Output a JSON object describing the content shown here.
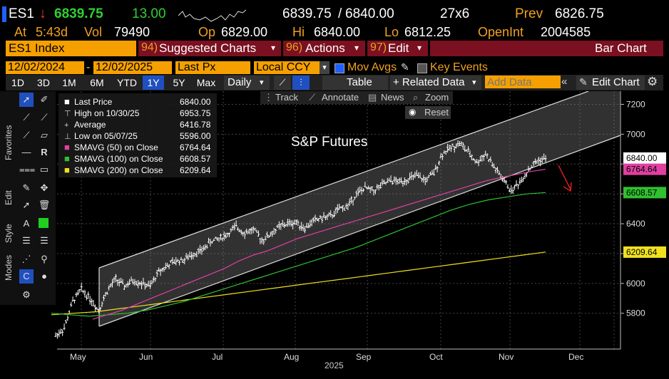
{
  "header": {
    "ticker": "ES1",
    "arrow": "↓",
    "last": "6839.75",
    "change": "13.00",
    "bid": "6839.75",
    "slash": "/",
    "ask": "6840.00",
    "size": "27x6",
    "prev_label": "Prev",
    "prev": "6826.75",
    "at_label": "At",
    "time": "5:43d",
    "vol_label": "Vol",
    "vol": "79490",
    "op_label": "Op",
    "op": "6829.00",
    "hi_label": "Hi",
    "hi": "6840.00",
    "lo_label": "Lo",
    "lo": "6812.25",
    "oi_label": "OpenInt",
    "oi": "2004585"
  },
  "menubar": {
    "security": "ES1 Index",
    "suggested_num": "94)",
    "suggested": "Suggested Charts",
    "actions_num": "96)",
    "actions": "Actions",
    "edit_num": "97)",
    "edit": "Edit",
    "chart_type": "Bar Chart"
  },
  "controls": {
    "start_date": "12/02/2024",
    "dash": "-",
    "end_date": "12/02/2025",
    "field": "Last Px",
    "ccy": "Local CCY",
    "mov_avgs": "Mov Avgs",
    "key_events": "Key Events"
  },
  "periods": [
    "1D",
    "3D",
    "1M",
    "6M",
    "YTD",
    "1Y",
    "5Y",
    "Max"
  ],
  "selected_period": "1Y",
  "toolbar": {
    "interval": "Daily",
    "table": "Table",
    "related": "+ Related Data",
    "add_data_placeholder": "Add Data",
    "edit_chart": "Edit Chart"
  },
  "chart_tools": {
    "track": "Track",
    "annotate": "Annotate",
    "news": "News",
    "zoom": "Zoom",
    "reset": "Reset"
  },
  "side_tabs": [
    "Favorites",
    "Edit",
    "Style",
    "Modes"
  ],
  "legend": [
    {
      "label": "Last Price",
      "value": "6840.00",
      "color": "#ffffff"
    },
    {
      "label": "High on 10/30/25",
      "value": "6953.75",
      "color": "#cccccc"
    },
    {
      "label": "Average",
      "value": "6416.78",
      "color": "#cccccc"
    },
    {
      "label": "Low on 05/07/25",
      "value": "5596.00",
      "color": "#cccccc"
    },
    {
      "label": "SMAVG (50)  on Close",
      "value": "6764.64",
      "color": "#e040a0"
    },
    {
      "label": "SMAVG (100)  on Close",
      "value": "6608.57",
      "color": "#30c030"
    },
    {
      "label": "SMAVG (200)  on Close",
      "value": "6209.64",
      "color": "#f0e020"
    }
  ],
  "chart_data": {
    "type": "bar",
    "title": "S&P Futures",
    "x_labels": [
      "May",
      "Jun",
      "Jul",
      "Aug",
      "Sep",
      "Oct",
      "Nov",
      "Dec"
    ],
    "year_label": "2025",
    "y_ticks": [
      5800,
      6000,
      6200,
      6400,
      6600,
      6800,
      7000,
      7200
    ],
    "ylim": [
      5560,
      7250
    ],
    "price_tags": [
      {
        "value": 6840.0,
        "text": "6840.00",
        "bg": "#ffffff"
      },
      {
        "value": 6764.64,
        "text": "6764.64",
        "bg": "#e040a0"
      },
      {
        "value": 6608.57,
        "text": "6608.57",
        "bg": "#30c030"
      },
      {
        "value": 6209.64,
        "text": "6209.64",
        "bg": "#f0e020"
      }
    ],
    "weekly_closes": [
      5650,
      5700,
      5880,
      5960,
      5900,
      5820,
      5950,
      6030,
      5980,
      6020,
      6000,
      5980,
      6080,
      6120,
      6150,
      6160,
      6200,
      6220,
      6280,
      6300,
      6330,
      6380,
      6340,
      6360,
      6290,
      6330,
      6380,
      6400,
      6410,
      6370,
      6420,
      6440,
      6450,
      6500,
      6520,
      6600,
      6640,
      6620,
      6660,
      6690,
      6680,
      6700,
      6720,
      6690,
      6740,
      6870,
      6910,
      6940,
      6880,
      6810,
      6870,
      6780,
      6700,
      6620,
      6680,
      6760,
      6820,
      6840
    ],
    "sma50": [
      5760,
      5790,
      5820,
      5860,
      5900,
      5940,
      5980,
      6020,
      6060,
      6100,
      6150,
      6190,
      6220,
      6260,
      6300,
      6330,
      6360,
      6390,
      6420,
      6450,
      6480,
      6510,
      6540,
      6570,
      6600,
      6630,
      6660,
      6690,
      6710,
      6730,
      6750,
      6765
    ],
    "sma100": [
      5800,
      5790,
      5780,
      5790,
      5800,
      5820,
      5850,
      5880,
      5920,
      5960,
      6000,
      6040,
      6080,
      6120,
      6160,
      6200,
      6240,
      6290,
      6340,
      6390,
      6440,
      6490,
      6530,
      6560,
      6580,
      6600,
      6609
    ],
    "sma200": [
      5790,
      5800,
      5810,
      5830,
      5850,
      5870,
      5890,
      5910,
      5930,
      5950,
      5970,
      5990,
      6010,
      6030,
      6050,
      6070,
      6090,
      6110,
      6130,
      6150,
      6170,
      6190,
      6210
    ]
  }
}
